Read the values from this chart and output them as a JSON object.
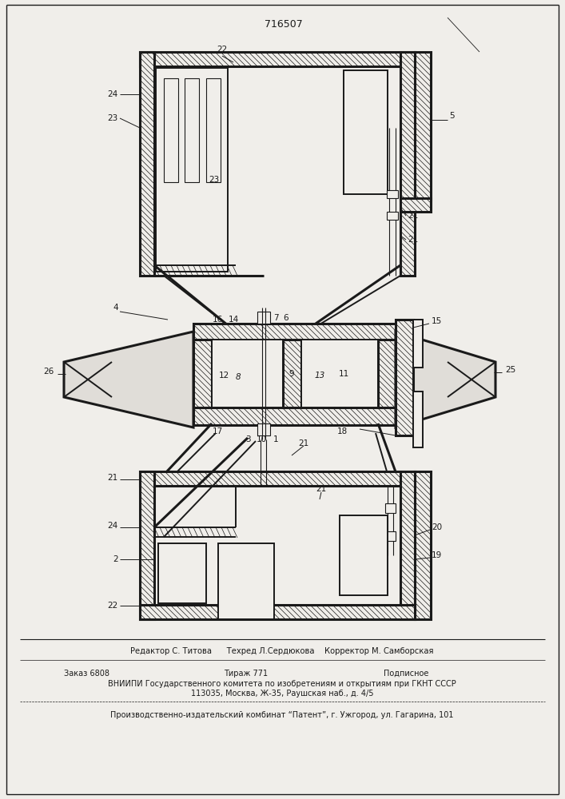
{
  "patent_number": "716507",
  "bg_color": "#f0eeea",
  "line_color": "#1a1a1a",
  "footer_lines": [
    "Редактор С. Титова      Техред Л.Сердюкова    Корректор М. Самборская",
    "Заказ 6808          Тираж 771            Подписное",
    "ВНИИПИ Государственного комитета по изобретениям и открытиям при ГКНТ СССР",
    "113035, Москва, Ж-35, Раушская наб., д. 4/5",
    "Производственно-издательский комбинат “Патент”, г. Ужгород, ул. Гагарина, 101"
  ]
}
